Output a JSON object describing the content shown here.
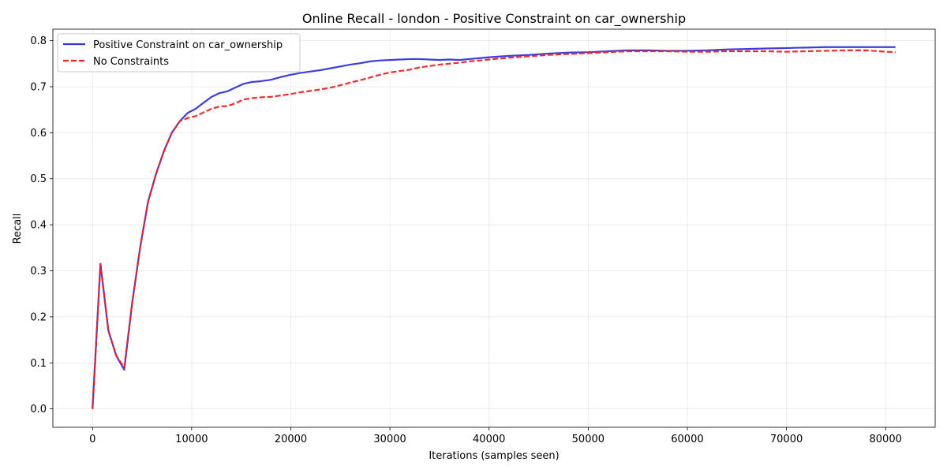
{
  "chart_data": {
    "type": "line",
    "title": "Online Recall - london - Positive Constraint on car_ownership",
    "xlabel": "Iterations (samples seen)",
    "ylabel": "Recall",
    "xlim": [
      -4000,
      85000
    ],
    "ylim": [
      -0.04,
      0.825
    ],
    "xticks": [
      0,
      10000,
      20000,
      30000,
      40000,
      50000,
      60000,
      70000,
      80000
    ],
    "yticks": [
      0.0,
      0.1,
      0.2,
      0.3,
      0.4,
      0.5,
      0.6,
      0.7,
      0.8
    ],
    "grid": true,
    "legend_position": "top-left",
    "series": [
      {
        "name": "Positive Constraint on car_ownership",
        "color": "#3333dd",
        "style": "solid",
        "x": [
          0,
          800,
          1600,
          2400,
          3200,
          4000,
          4800,
          5600,
          6400,
          7200,
          8000,
          8800,
          9600,
          10400,
          11200,
          12000,
          12800,
          13600,
          14400,
          15200,
          16000,
          17000,
          18000,
          19000,
          20000,
          21000,
          22000,
          23000,
          24000,
          25000,
          26000,
          27000,
          28000,
          29000,
          30000,
          31000,
          32000,
          33000,
          34000,
          35000,
          36000,
          37000,
          38000,
          39000,
          40000,
          42000,
          44000,
          46000,
          48000,
          50000,
          52000,
          54000,
          56000,
          58000,
          60000,
          62000,
          64000,
          66000,
          68000,
          70000,
          72000,
          74000,
          76000,
          78000,
          80000,
          81000
        ],
        "y": [
          0.0,
          0.315,
          0.17,
          0.115,
          0.085,
          0.23,
          0.35,
          0.45,
          0.51,
          0.56,
          0.6,
          0.625,
          0.643,
          0.652,
          0.665,
          0.678,
          0.686,
          0.69,
          0.698,
          0.706,
          0.71,
          0.712,
          0.715,
          0.721,
          0.726,
          0.73,
          0.733,
          0.736,
          0.74,
          0.744,
          0.748,
          0.751,
          0.755,
          0.757,
          0.758,
          0.759,
          0.76,
          0.76,
          0.759,
          0.758,
          0.759,
          0.758,
          0.76,
          0.762,
          0.764,
          0.767,
          0.769,
          0.772,
          0.774,
          0.775,
          0.777,
          0.779,
          0.779,
          0.778,
          0.778,
          0.779,
          0.781,
          0.782,
          0.783,
          0.784,
          0.785,
          0.786,
          0.786,
          0.786,
          0.786,
          0.786
        ]
      },
      {
        "name": "No Constraints",
        "color": "#ee2222",
        "style": "dashed",
        "x": [
          0,
          800,
          1600,
          2400,
          3200,
          4000,
          4800,
          5600,
          6400,
          7200,
          8000,
          8800,
          9600,
          10400,
          11200,
          12000,
          12800,
          13600,
          14400,
          15200,
          16000,
          17000,
          18000,
          19000,
          20000,
          21000,
          22000,
          23000,
          24000,
          25000,
          26000,
          27000,
          28000,
          29000,
          30000,
          31000,
          32000,
          33000,
          34000,
          35000,
          36000,
          37000,
          38000,
          39000,
          40000,
          42000,
          44000,
          46000,
          48000,
          50000,
          52000,
          54000,
          56000,
          58000,
          60000,
          62000,
          64000,
          66000,
          68000,
          70000,
          72000,
          74000,
          76000,
          78000,
          80000,
          81000
        ],
        "y": [
          0.0,
          0.315,
          0.17,
          0.115,
          0.09,
          0.23,
          0.35,
          0.45,
          0.51,
          0.56,
          0.6,
          0.625,
          0.632,
          0.636,
          0.644,
          0.652,
          0.657,
          0.658,
          0.664,
          0.672,
          0.675,
          0.677,
          0.678,
          0.681,
          0.684,
          0.688,
          0.691,
          0.694,
          0.698,
          0.703,
          0.709,
          0.714,
          0.72,
          0.726,
          0.731,
          0.734,
          0.737,
          0.742,
          0.745,
          0.748,
          0.75,
          0.752,
          0.755,
          0.757,
          0.759,
          0.763,
          0.766,
          0.769,
          0.771,
          0.773,
          0.775,
          0.777,
          0.777,
          0.777,
          0.776,
          0.776,
          0.777,
          0.777,
          0.777,
          0.776,
          0.777,
          0.778,
          0.779,
          0.779,
          0.776,
          0.775
        ]
      }
    ]
  }
}
